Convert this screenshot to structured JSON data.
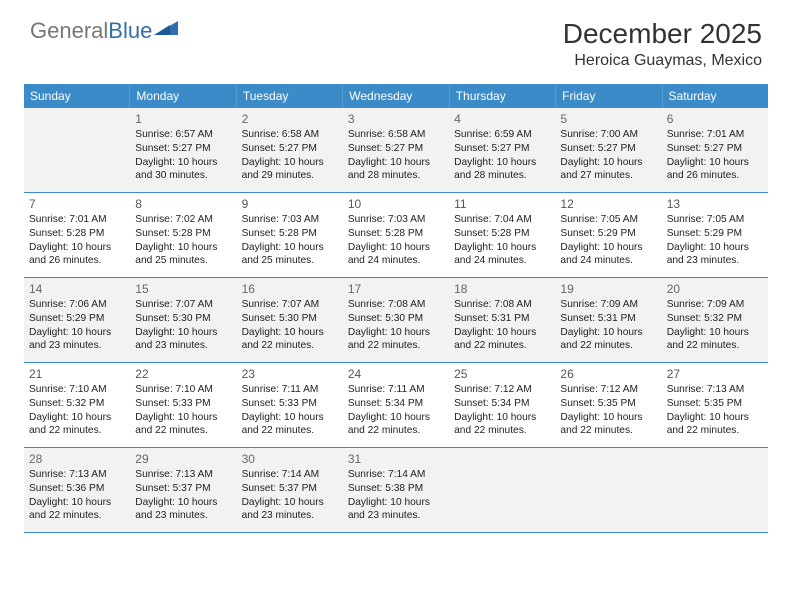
{
  "logo": {
    "word1": "General",
    "word2": "Blue"
  },
  "title": "December 2025",
  "location": "Heroica Guaymas, Mexico",
  "colors": {
    "header_bg": "#3b8bc9",
    "header_text": "#ffffff",
    "row_divider": "#3b8bc9",
    "shaded_bg": "#f2f2f2",
    "logo_accent": "#2f6fab"
  },
  "day_names": [
    "Sunday",
    "Monday",
    "Tuesday",
    "Wednesday",
    "Thursday",
    "Friday",
    "Saturday"
  ],
  "start_offset": 1,
  "days": [
    {
      "n": 1,
      "sr": "6:57 AM",
      "ss": "5:27 PM",
      "dl": "10 hours and 30 minutes."
    },
    {
      "n": 2,
      "sr": "6:58 AM",
      "ss": "5:27 PM",
      "dl": "10 hours and 29 minutes."
    },
    {
      "n": 3,
      "sr": "6:58 AM",
      "ss": "5:27 PM",
      "dl": "10 hours and 28 minutes."
    },
    {
      "n": 4,
      "sr": "6:59 AM",
      "ss": "5:27 PM",
      "dl": "10 hours and 28 minutes."
    },
    {
      "n": 5,
      "sr": "7:00 AM",
      "ss": "5:27 PM",
      "dl": "10 hours and 27 minutes."
    },
    {
      "n": 6,
      "sr": "7:01 AM",
      "ss": "5:27 PM",
      "dl": "10 hours and 26 minutes."
    },
    {
      "n": 7,
      "sr": "7:01 AM",
      "ss": "5:28 PM",
      "dl": "10 hours and 26 minutes."
    },
    {
      "n": 8,
      "sr": "7:02 AM",
      "ss": "5:28 PM",
      "dl": "10 hours and 25 minutes."
    },
    {
      "n": 9,
      "sr": "7:03 AM",
      "ss": "5:28 PM",
      "dl": "10 hours and 25 minutes."
    },
    {
      "n": 10,
      "sr": "7:03 AM",
      "ss": "5:28 PM",
      "dl": "10 hours and 24 minutes."
    },
    {
      "n": 11,
      "sr": "7:04 AM",
      "ss": "5:28 PM",
      "dl": "10 hours and 24 minutes."
    },
    {
      "n": 12,
      "sr": "7:05 AM",
      "ss": "5:29 PM",
      "dl": "10 hours and 24 minutes."
    },
    {
      "n": 13,
      "sr": "7:05 AM",
      "ss": "5:29 PM",
      "dl": "10 hours and 23 minutes."
    },
    {
      "n": 14,
      "sr": "7:06 AM",
      "ss": "5:29 PM",
      "dl": "10 hours and 23 minutes."
    },
    {
      "n": 15,
      "sr": "7:07 AM",
      "ss": "5:30 PM",
      "dl": "10 hours and 23 minutes."
    },
    {
      "n": 16,
      "sr": "7:07 AM",
      "ss": "5:30 PM",
      "dl": "10 hours and 22 minutes."
    },
    {
      "n": 17,
      "sr": "7:08 AM",
      "ss": "5:30 PM",
      "dl": "10 hours and 22 minutes."
    },
    {
      "n": 18,
      "sr": "7:08 AM",
      "ss": "5:31 PM",
      "dl": "10 hours and 22 minutes."
    },
    {
      "n": 19,
      "sr": "7:09 AM",
      "ss": "5:31 PM",
      "dl": "10 hours and 22 minutes."
    },
    {
      "n": 20,
      "sr": "7:09 AM",
      "ss": "5:32 PM",
      "dl": "10 hours and 22 minutes."
    },
    {
      "n": 21,
      "sr": "7:10 AM",
      "ss": "5:32 PM",
      "dl": "10 hours and 22 minutes."
    },
    {
      "n": 22,
      "sr": "7:10 AM",
      "ss": "5:33 PM",
      "dl": "10 hours and 22 minutes."
    },
    {
      "n": 23,
      "sr": "7:11 AM",
      "ss": "5:33 PM",
      "dl": "10 hours and 22 minutes."
    },
    {
      "n": 24,
      "sr": "7:11 AM",
      "ss": "5:34 PM",
      "dl": "10 hours and 22 minutes."
    },
    {
      "n": 25,
      "sr": "7:12 AM",
      "ss": "5:34 PM",
      "dl": "10 hours and 22 minutes."
    },
    {
      "n": 26,
      "sr": "7:12 AM",
      "ss": "5:35 PM",
      "dl": "10 hours and 22 minutes."
    },
    {
      "n": 27,
      "sr": "7:13 AM",
      "ss": "5:35 PM",
      "dl": "10 hours and 22 minutes."
    },
    {
      "n": 28,
      "sr": "7:13 AM",
      "ss": "5:36 PM",
      "dl": "10 hours and 22 minutes."
    },
    {
      "n": 29,
      "sr": "7:13 AM",
      "ss": "5:37 PM",
      "dl": "10 hours and 23 minutes."
    },
    {
      "n": 30,
      "sr": "7:14 AM",
      "ss": "5:37 PM",
      "dl": "10 hours and 23 minutes."
    },
    {
      "n": 31,
      "sr": "7:14 AM",
      "ss": "5:38 PM",
      "dl": "10 hours and 23 minutes."
    }
  ],
  "labels": {
    "sunrise": "Sunrise:",
    "sunset": "Sunset:",
    "daylight": "Daylight:"
  }
}
